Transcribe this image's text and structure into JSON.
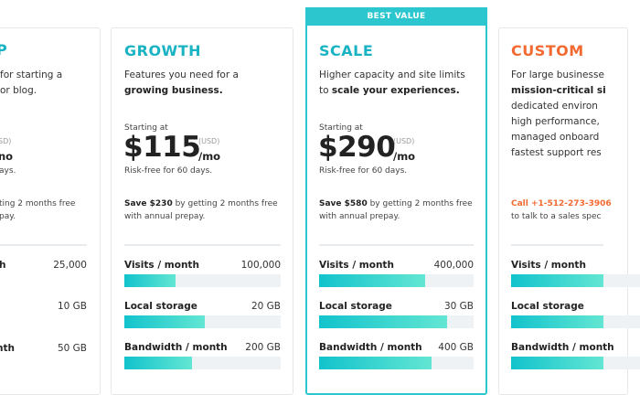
{
  "badge": "BEST VALUE",
  "partial_plan": {
    "title": "P",
    "description": [
      "for starting a",
      "or blog."
    ],
    "currency": "SD)",
    "per": "no",
    "trial": "ays.",
    "save": [
      "ting 2 months free",
      "pay."
    ],
    "features": [
      {
        "label": "h",
        "value": "25,000"
      },
      {
        "value": "10 GB"
      },
      {
        "label": "nth",
        "value": "50 GB"
      }
    ]
  },
  "plans": [
    {
      "title": "GROWTH",
      "description": [
        [
          {
            "text": "Features you need for a"
          }
        ],
        [
          {
            "text": "growing business.",
            "bold": true
          }
        ]
      ],
      "starting": "Starting at",
      "price": "$115",
      "currency": "(USD)",
      "per": "/mo",
      "trial": "Risk-free for 60 days.",
      "save_bold": "Save $230",
      "save": "by getting 2 months free",
      "save_line2": "with annual prepay.",
      "features": [
        {
          "label": "Visits / month",
          "value": "100,000"
        },
        {
          "label": "Local storage",
          "value": "20 GB"
        },
        {
          "label": "Bandwidth / month",
          "value": "200 GB"
        }
      ]
    },
    {
      "title": "SCALE",
      "description": [
        [
          {
            "text": "Higher capacity and site limits"
          }
        ],
        [
          {
            "text": "to"
          },
          {
            "text": "scale your experiences.",
            "bold": true
          }
        ]
      ],
      "starting": "Starting at",
      "price": "$290",
      "currency": "(USD)",
      "per": "/mo",
      "trial": "Risk-free for 60 days.",
      "save_bold": "Save $580",
      "save": "by getting 2 months free",
      "save_line2": "with annual prepay.",
      "features": [
        {
          "label": "Visits / month",
          "value": "400,000"
        },
        {
          "label": "Local storage",
          "value": "30 GB"
        },
        {
          "label": "Bandwidth / month",
          "value": "400 GB"
        }
      ]
    },
    {
      "title": "CUSTOM",
      "description": [
        [
          {
            "text": "For large businesse"
          }
        ],
        [
          {
            "text": "mission-critical si",
            "bold": true
          }
        ],
        [
          {
            "text": "dedicated environ"
          }
        ],
        [
          {
            "text": "high performance,"
          }
        ],
        [
          {
            "text": "managed onboard"
          }
        ],
        [
          {
            "text": "fastest support res"
          }
        ]
      ],
      "call": "Call +1-512-273-3906",
      "call_line2": "to talk to a sales spec",
      "features": [
        {
          "label": "Visits / month"
        },
        {
          "label": "Local storage"
        },
        {
          "label": "Bandwidth / month"
        }
      ]
    }
  ]
}
